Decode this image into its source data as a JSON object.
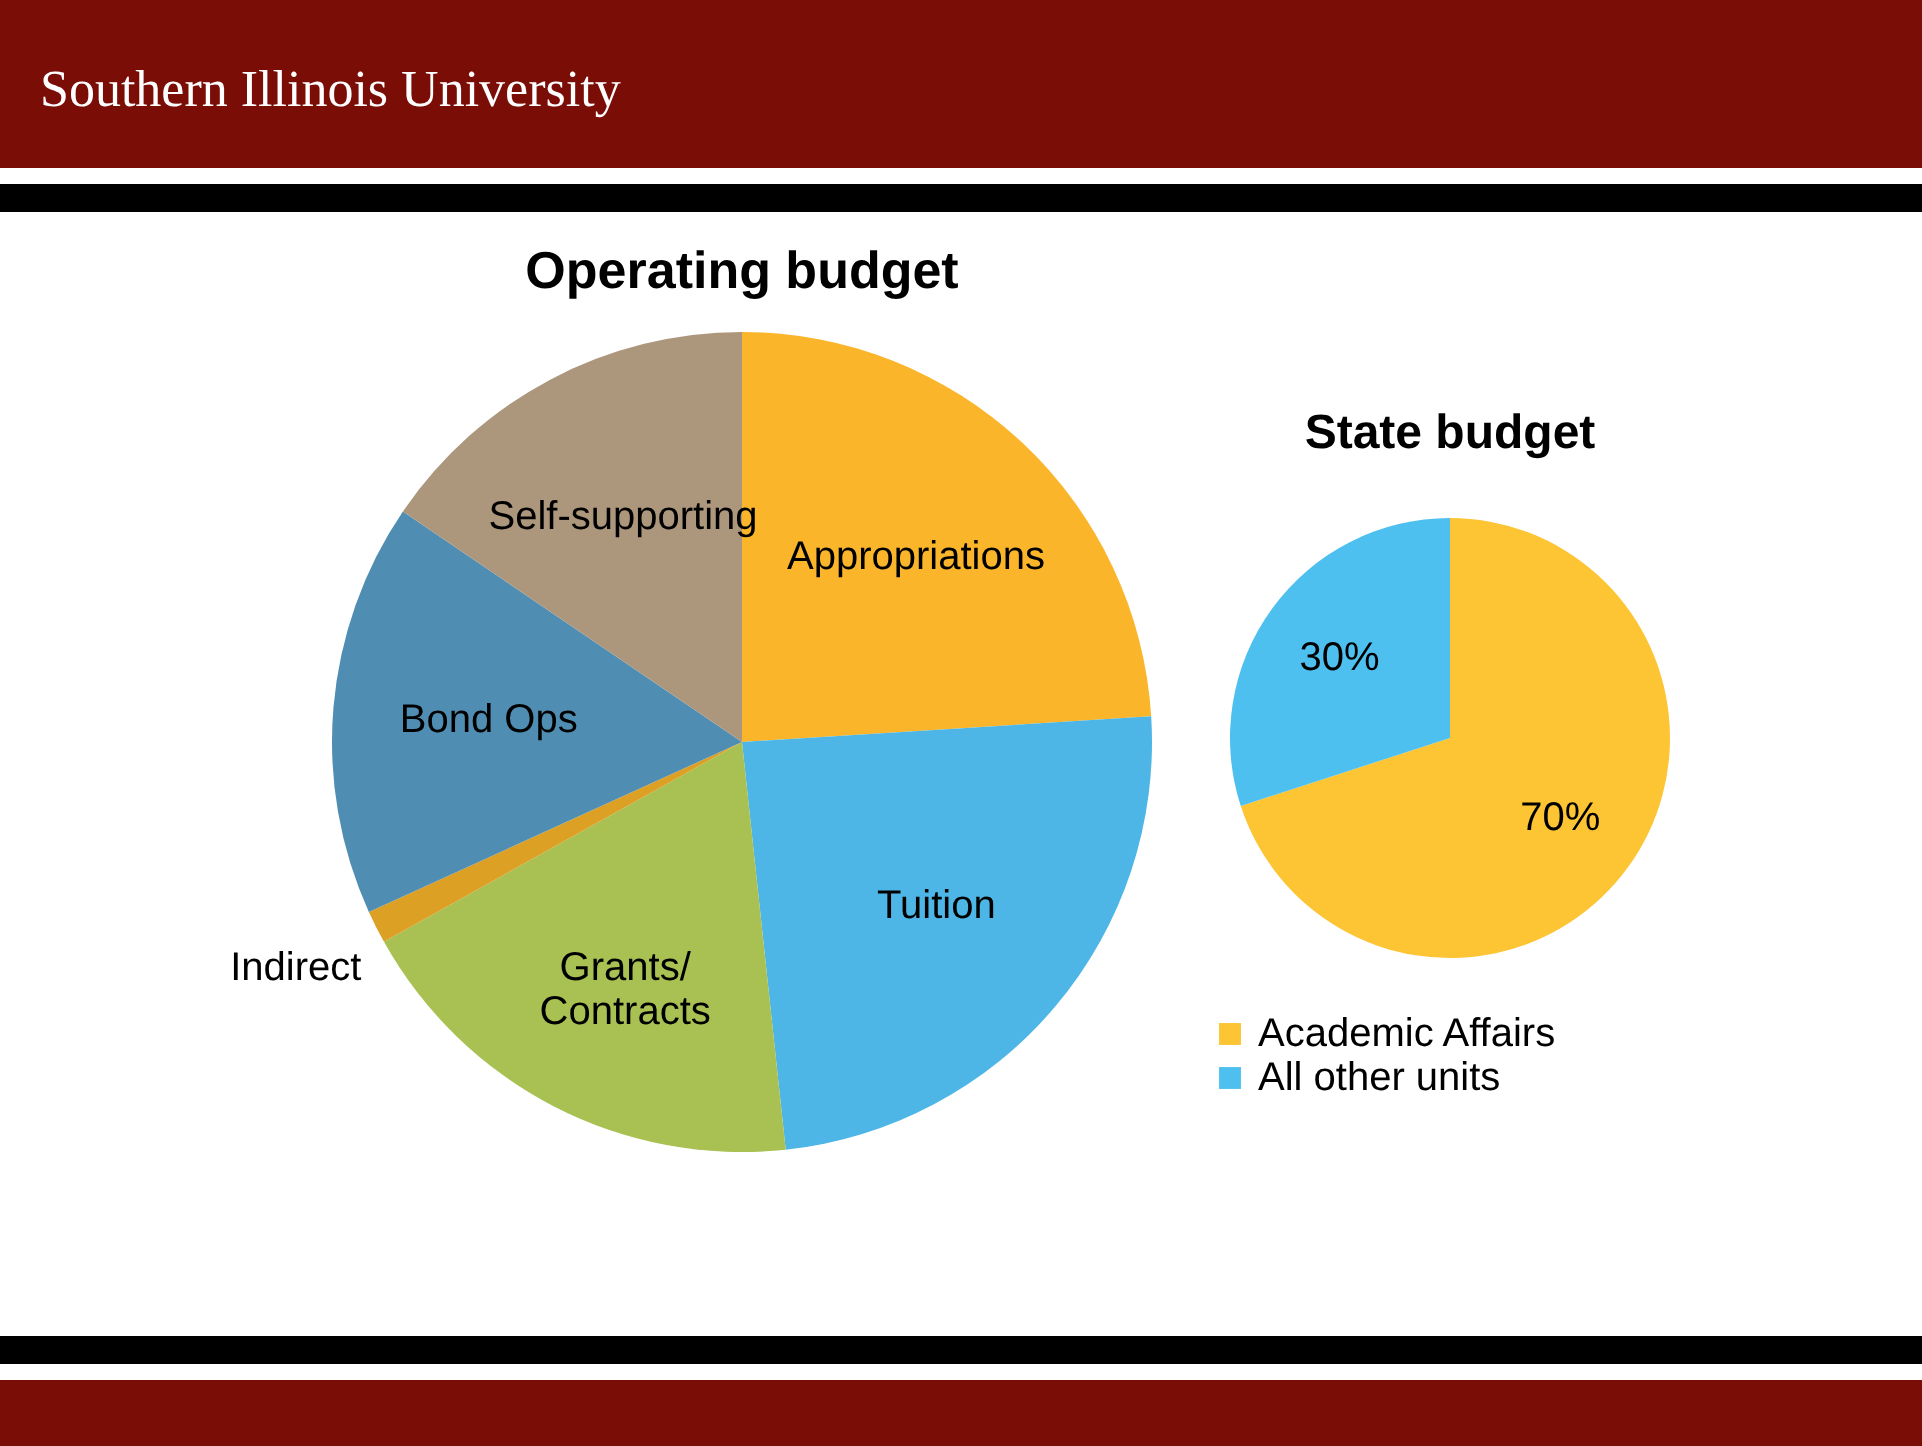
{
  "chart_data": [
    {
      "type": "pie",
      "title": "Operating budget",
      "annotations": [
        "Southern Illinois University"
      ],
      "categories": [
        "Appropriations",
        "Tuition",
        "Grants/ Contracts",
        "Indirect",
        "Bond Ops",
        "Self-supporting"
      ],
      "values": [
        24,
        24.3,
        18.6,
        1.3,
        16.3,
        15.5
      ],
      "colors": [
        "#fbb52a",
        "#4db6e6",
        "#a9c052",
        "#dca024",
        "#4f8db3",
        "#ad977c"
      ]
    },
    {
      "type": "pie",
      "title": "State budget",
      "categories": [
        "Academic Affairs",
        "All other units"
      ],
      "values": [
        70,
        30
      ],
      "value_labels": [
        "70%",
        "30%"
      ],
      "colors": [
        "#fdc434",
        "#4ec0f0"
      ],
      "legend": "bottom"
    }
  ]
}
